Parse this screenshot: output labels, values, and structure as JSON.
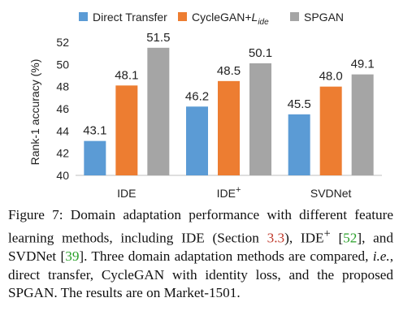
{
  "chart_data": {
    "type": "bar",
    "categories": [
      "IDE",
      "IDE+",
      "SVDNet"
    ],
    "category_display": [
      {
        "base": "IDE",
        "sup": ""
      },
      {
        "base": "IDE",
        "sup": "+"
      },
      {
        "base": "SVDNet",
        "sup": ""
      }
    ],
    "series": [
      {
        "name": "Direct Transfer",
        "color": "#5b9bd5",
        "values": [
          43.1,
          46.2,
          45.5
        ]
      },
      {
        "name": "CycleGAN+L_ide",
        "color": "#ed7d31",
        "values": [
          48.1,
          48.5,
          48.0
        ]
      },
      {
        "name": "SPGAN",
        "color": "#a5a5a5",
        "values": [
          51.5,
          50.1,
          49.1
        ]
      }
    ],
    "legend_display": [
      {
        "base": "Direct Transfer",
        "sub": ""
      },
      {
        "base": "CycleGAN+",
        "sub": "ide",
        "italic_prefix": "L"
      },
      {
        "base": "SPGAN",
        "sub": ""
      }
    ],
    "ylabel": "Rank-1 accuracy (%)",
    "ylim": [
      40,
      52
    ],
    "yticks": [
      40,
      42,
      44,
      46,
      48,
      50,
      52
    ],
    "grid": false,
    "legend_position": "top"
  },
  "caption": {
    "label": "Figure 7:",
    "text_1": " Domain adaptation performance with different feature learning methods, including IDE (Section ",
    "ref_section": "3.3",
    "text_2": "), IDE",
    "sup_plus": "+",
    "text_3": " [",
    "cite_1": "52",
    "text_4": "], and SVDNet [",
    "cite_2": "39",
    "text_5": "].  Three domain adaptation methods are compared, ",
    "ie": "i.e.",
    "text_6": ", direct transfer, CycleGAN with identity loss, and the proposed SPGAN. The results are on Market-1501."
  }
}
